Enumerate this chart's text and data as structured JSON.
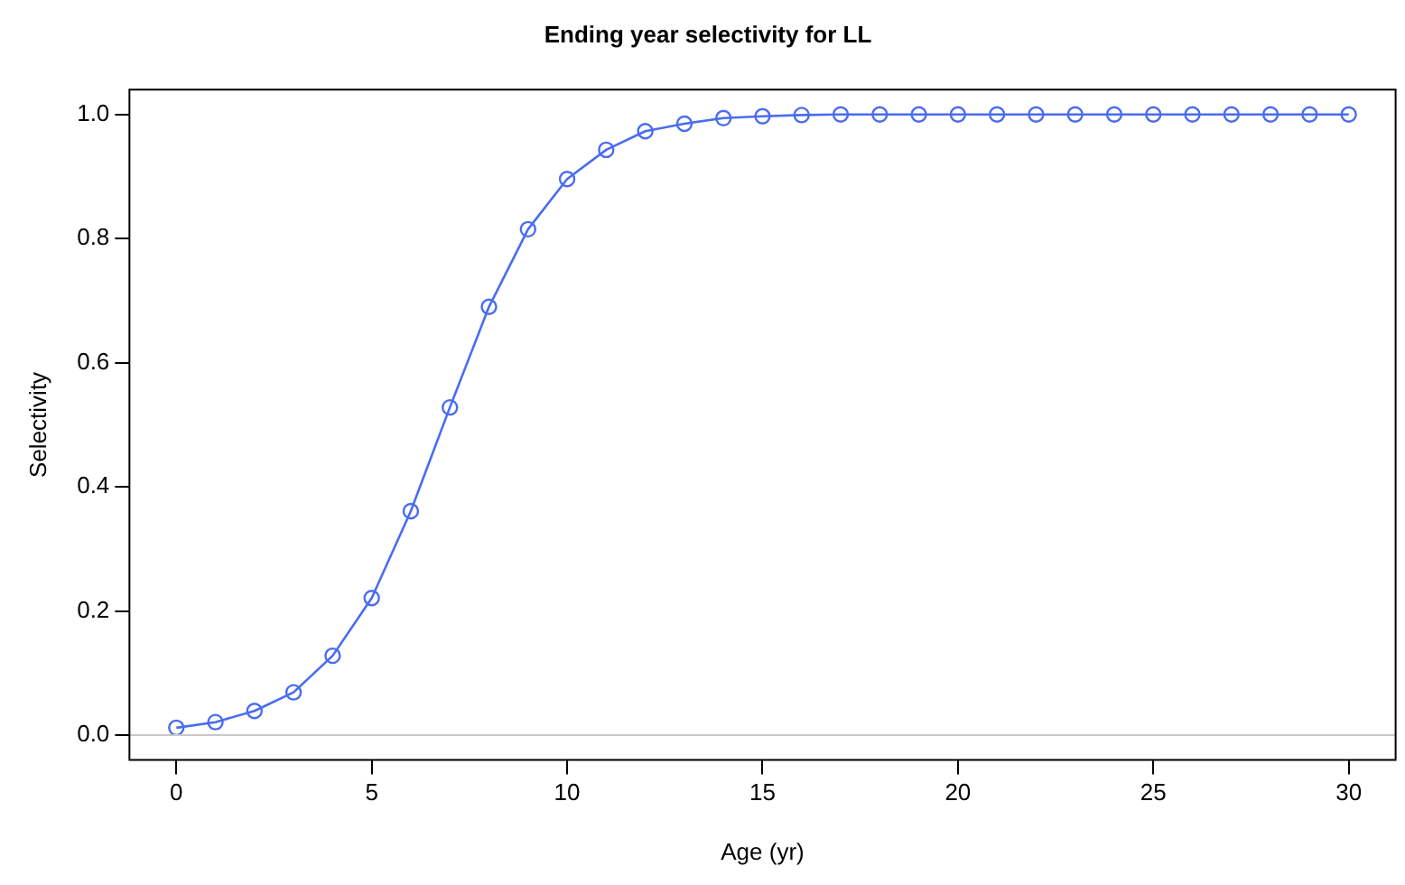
{
  "chart_data": {
    "type": "line",
    "title": "Ending year selectivity for LL",
    "xlabel": "Age (yr)",
    "ylabel": "Selectivity",
    "x": [
      0,
      1,
      2,
      3,
      4,
      5,
      6,
      7,
      8,
      9,
      10,
      11,
      12,
      13,
      14,
      15,
      16,
      17,
      18,
      19,
      20,
      21,
      22,
      23,
      24,
      25,
      26,
      27,
      28,
      29,
      30
    ],
    "series": [
      {
        "color": "#4a6cf0",
        "values": [
          0.012,
          0.021,
          0.039,
          0.069,
          0.128,
          0.221,
          0.361,
          0.528,
          0.69,
          0.815,
          0.896,
          0.943,
          0.973,
          0.985,
          0.994,
          0.997,
          0.999,
          1,
          1,
          1,
          1,
          1,
          1,
          1,
          1,
          1,
          1,
          1,
          1,
          1,
          1
        ]
      }
    ],
    "xlim": [
      -1.2,
      31.2
    ],
    "xticks": [
      0,
      5,
      10,
      15,
      20,
      25,
      30
    ],
    "ylim": [
      -0.04,
      1.04
    ],
    "yticks": [
      {
        "value": 0,
        "label": "0.0"
      },
      {
        "value": 0.2,
        "label": "0.2"
      },
      {
        "value": 0.4,
        "label": "0.4"
      },
      {
        "value": 0.6,
        "label": "0.6"
      },
      {
        "value": 0.8,
        "label": "0.8"
      },
      {
        "value": 1,
        "label": "1.0"
      }
    ],
    "ref_lines": [
      {
        "axis": "y",
        "value": 0,
        "color": "#c8c8c8"
      }
    ],
    "marker": "circle",
    "line_style": "solid",
    "grid": false,
    "legend": false
  }
}
